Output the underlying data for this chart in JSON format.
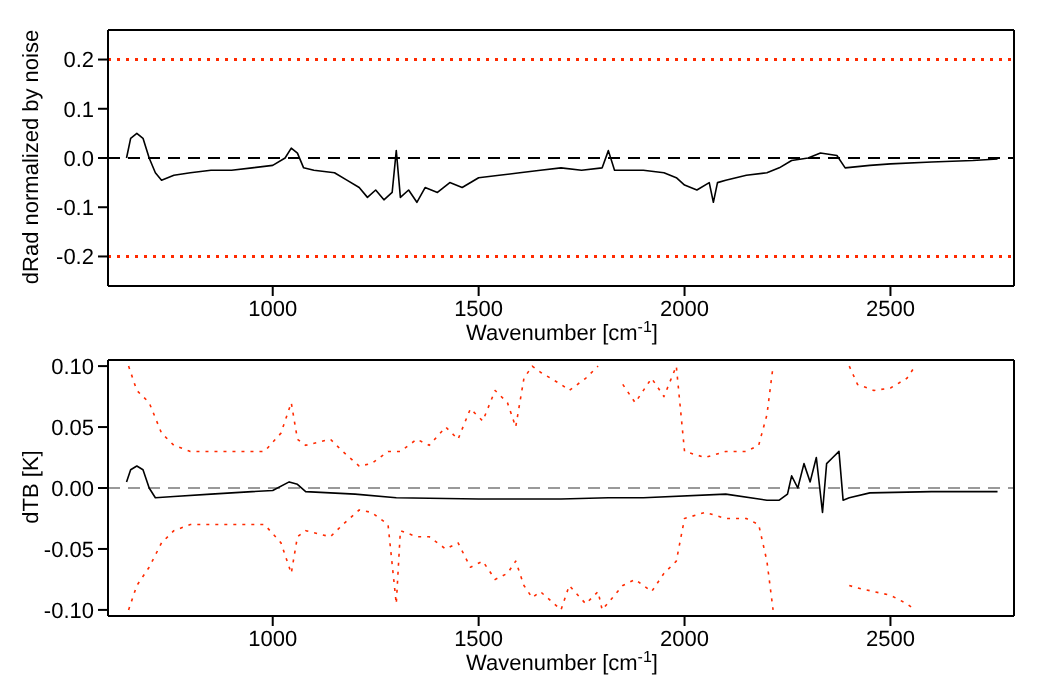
{
  "chart_data": [
    {
      "type": "line",
      "ylabel": "dRad normalized by noise",
      "xlabel": "Wavenumber [cm$^{-1}$]",
      "xlim": [
        600,
        2800
      ],
      "xticks": [
        1000,
        1500,
        2000,
        2500
      ],
      "ylim": [
        -0.26,
        0.26
      ],
      "yticks": [
        {
          "value": -0.2,
          "label": "-0.2"
        },
        {
          "value": -0.1,
          "label": "-0.1"
        },
        {
          "value": 0,
          "label": "0.0"
        },
        {
          "value": 0.1,
          "label": "0.1"
        },
        {
          "value": 0.2,
          "label": "0.2"
        }
      ],
      "grid": false,
      "marker": "none",
      "ref_lines": [
        {
          "axis": "y",
          "value": 0.2,
          "color": "#ff2a00",
          "line_style": "dotted"
        },
        {
          "axis": "y",
          "value": -0.2,
          "color": "#ff2a00",
          "line_style": "dotted"
        },
        {
          "axis": "y",
          "value": 0,
          "color": "#000000",
          "line_style": "dashed"
        }
      ],
      "series": [
        {
          "color": "#000000",
          "line_style": "solid",
          "x": [
            645,
            655,
            670,
            685,
            700,
            715,
            730,
            760,
            800,
            850,
            900,
            950,
            1000,
            1030,
            1045,
            1060,
            1075,
            1100,
            1150,
            1180,
            1210,
            1230,
            1250,
            1270,
            1290,
            1300,
            1310,
            1330,
            1350,
            1370,
            1400,
            1430,
            1460,
            1500,
            1550,
            1600,
            1650,
            1700,
            1750,
            1800,
            1815,
            1830,
            1900,
            1950,
            1980,
            2000,
            2030,
            2060,
            2070,
            2080,
            2100,
            2150,
            2200,
            2230,
            2260,
            2300,
            2330,
            2370,
            2390,
            2450,
            2500,
            2600,
            2700,
            2760
          ],
          "values": [
            0.0,
            0.04,
            0.05,
            0.04,
            0.0,
            -0.03,
            -0.045,
            -0.035,
            -0.03,
            -0.025,
            -0.025,
            -0.02,
            -0.015,
            0.0,
            0.02,
            0.01,
            -0.02,
            -0.025,
            -0.03,
            -0.045,
            -0.06,
            -0.08,
            -0.065,
            -0.085,
            -0.07,
            0.015,
            -0.08,
            -0.065,
            -0.09,
            -0.06,
            -0.07,
            -0.05,
            -0.06,
            -0.04,
            -0.035,
            -0.03,
            -0.025,
            -0.02,
            -0.025,
            -0.02,
            0.015,
            -0.025,
            -0.025,
            -0.03,
            -0.04,
            -0.055,
            -0.065,
            -0.05,
            -0.09,
            -0.05,
            -0.045,
            -0.035,
            -0.03,
            -0.02,
            -0.005,
            0.0,
            0.01,
            0.005,
            -0.02,
            -0.015,
            -0.012,
            -0.008,
            -0.005,
            -0.002
          ]
        }
      ]
    },
    {
      "type": "line",
      "ylabel": "dTB [K]",
      "xlabel": "Wavenumber [cm$^{-1}$]",
      "xlim": [
        600,
        2800
      ],
      "xticks": [
        1000,
        1500,
        2000,
        2500
      ],
      "ylim": [
        -0.105,
        0.105
      ],
      "yticks": [
        {
          "value": -0.1,
          "label": "-0.10"
        },
        {
          "value": -0.05,
          "label": "-0.05"
        },
        {
          "value": 0,
          "label": "0.00"
        },
        {
          "value": 0.05,
          "label": "0.05"
        },
        {
          "value": 0.1,
          "label": "0.10"
        }
      ],
      "grid": false,
      "marker": "none",
      "ref_lines": [
        {
          "axis": "y",
          "value": 0,
          "color": "#999999",
          "line_style": "dashed"
        }
      ],
      "series": [
        {
          "color": "#ff2a00",
          "line_style": "dotted",
          "x": [
            650,
            670,
            700,
            730,
            760,
            800,
            900,
            980,
            1020,
            1045,
            1060,
            1080,
            1140,
            1170,
            1210,
            1240,
            1280,
            1310,
            1350,
            1380,
            1420,
            1450,
            1480,
            1510,
            1540,
            1570,
            1590,
            1610,
            1630,
            1650,
            1700,
            1720,
            1760,
            1790,
            1800,
            1850,
            1880,
            1920,
            1950,
            1980,
            2000,
            2050,
            2100,
            2150,
            2180,
            2200,
            2215,
            2220,
            2400,
            2420,
            2460,
            2500,
            2540,
            2560
          ],
          "values": [
            0.1,
            0.08,
            0.07,
            0.045,
            0.035,
            0.03,
            0.03,
            0.03,
            0.045,
            0.07,
            0.04,
            0.035,
            0.04,
            0.03,
            0.018,
            0.02,
            0.03,
            0.03,
            0.04,
            0.035,
            0.05,
            0.04,
            0.065,
            0.055,
            0.08,
            0.07,
            0.05,
            0.09,
            0.1,
            0.095,
            0.085,
            0.08,
            0.09,
            0.1,
            null,
            0.085,
            0.07,
            0.09,
            0.075,
            0.1,
            0.03,
            0.025,
            0.03,
            0.03,
            0.035,
            0.06,
            0.1,
            null,
            0.1,
            0.085,
            0.08,
            0.082,
            0.09,
            0.1
          ]
        },
        {
          "color": "#ff2a00",
          "line_style": "dotted",
          "x": [
            650,
            670,
            700,
            730,
            760,
            800,
            900,
            980,
            1020,
            1045,
            1060,
            1080,
            1140,
            1170,
            1210,
            1240,
            1280,
            1300,
            1310,
            1350,
            1380,
            1420,
            1450,
            1480,
            1510,
            1540,
            1570,
            1590,
            1610,
            1630,
            1650,
            1700,
            1720,
            1760,
            1790,
            1800,
            1850,
            1880,
            1920,
            1950,
            1980,
            2000,
            2050,
            2100,
            2150,
            2180,
            2200,
            2215,
            2220,
            2400,
            2420,
            2460,
            2500,
            2540,
            2560
          ],
          "values": [
            -0.1,
            -0.08,
            -0.065,
            -0.045,
            -0.035,
            -0.03,
            -0.03,
            -0.03,
            -0.045,
            -0.07,
            -0.04,
            -0.035,
            -0.04,
            -0.03,
            -0.018,
            -0.02,
            -0.03,
            -0.095,
            -0.035,
            -0.04,
            -0.04,
            -0.05,
            -0.045,
            -0.065,
            -0.06,
            -0.075,
            -0.07,
            -0.06,
            -0.08,
            -0.09,
            -0.085,
            -0.1,
            -0.08,
            -0.095,
            -0.085,
            -0.1,
            -0.08,
            -0.075,
            -0.085,
            -0.07,
            -0.06,
            -0.025,
            -0.02,
            -0.025,
            -0.025,
            -0.03,
            -0.06,
            -0.1,
            null,
            -0.08,
            -0.082,
            -0.085,
            -0.088,
            -0.095,
            -0.1
          ]
        },
        {
          "color": "#000000",
          "line_style": "solid",
          "x": [
            645,
            655,
            670,
            685,
            700,
            715,
            760,
            850,
            950,
            1000,
            1040,
            1060,
            1080,
            1200,
            1300,
            1500,
            1700,
            1815,
            1900,
            2100,
            2200,
            2230,
            2250,
            2260,
            2275,
            2290,
            2305,
            2320,
            2335,
            2345,
            2360,
            2375,
            2385,
            2400,
            2450,
            2600,
            2760
          ],
          "values": [
            0.005,
            0.015,
            0.018,
            0.015,
            0.0,
            -0.008,
            -0.007,
            -0.005,
            -0.003,
            -0.002,
            0.005,
            0.003,
            -0.003,
            -0.005,
            -0.008,
            -0.009,
            -0.009,
            -0.008,
            -0.008,
            -0.005,
            -0.01,
            -0.01,
            -0.005,
            0.01,
            0.0,
            0.02,
            0.005,
            0.025,
            -0.02,
            0.02,
            0.025,
            0.03,
            -0.01,
            -0.008,
            -0.004,
            -0.003,
            -0.003
          ]
        }
      ]
    }
  ]
}
